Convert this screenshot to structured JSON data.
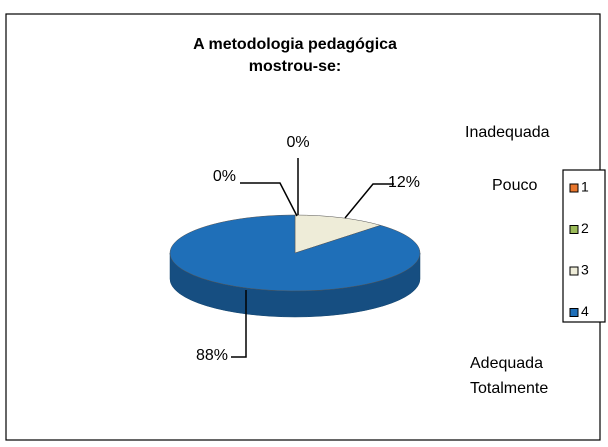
{
  "chart_data": {
    "type": "pie",
    "title": [
      "A metodologia pedagógica",
      "mostrou-se:"
    ],
    "categories": [
      "1",
      "2",
      "3",
      "4"
    ],
    "values": [
      0,
      0,
      12,
      88
    ],
    "value_labels": [
      "0%",
      "0%",
      "12%",
      "88%"
    ],
    "colors": [
      "#e8762d",
      "#9bbb59",
      "#eeecd8",
      "#1f6fb8"
    ],
    "annotations": [
      "Inadequada",
      "Pouco",
      "Adequada",
      "Totalmente"
    ]
  }
}
